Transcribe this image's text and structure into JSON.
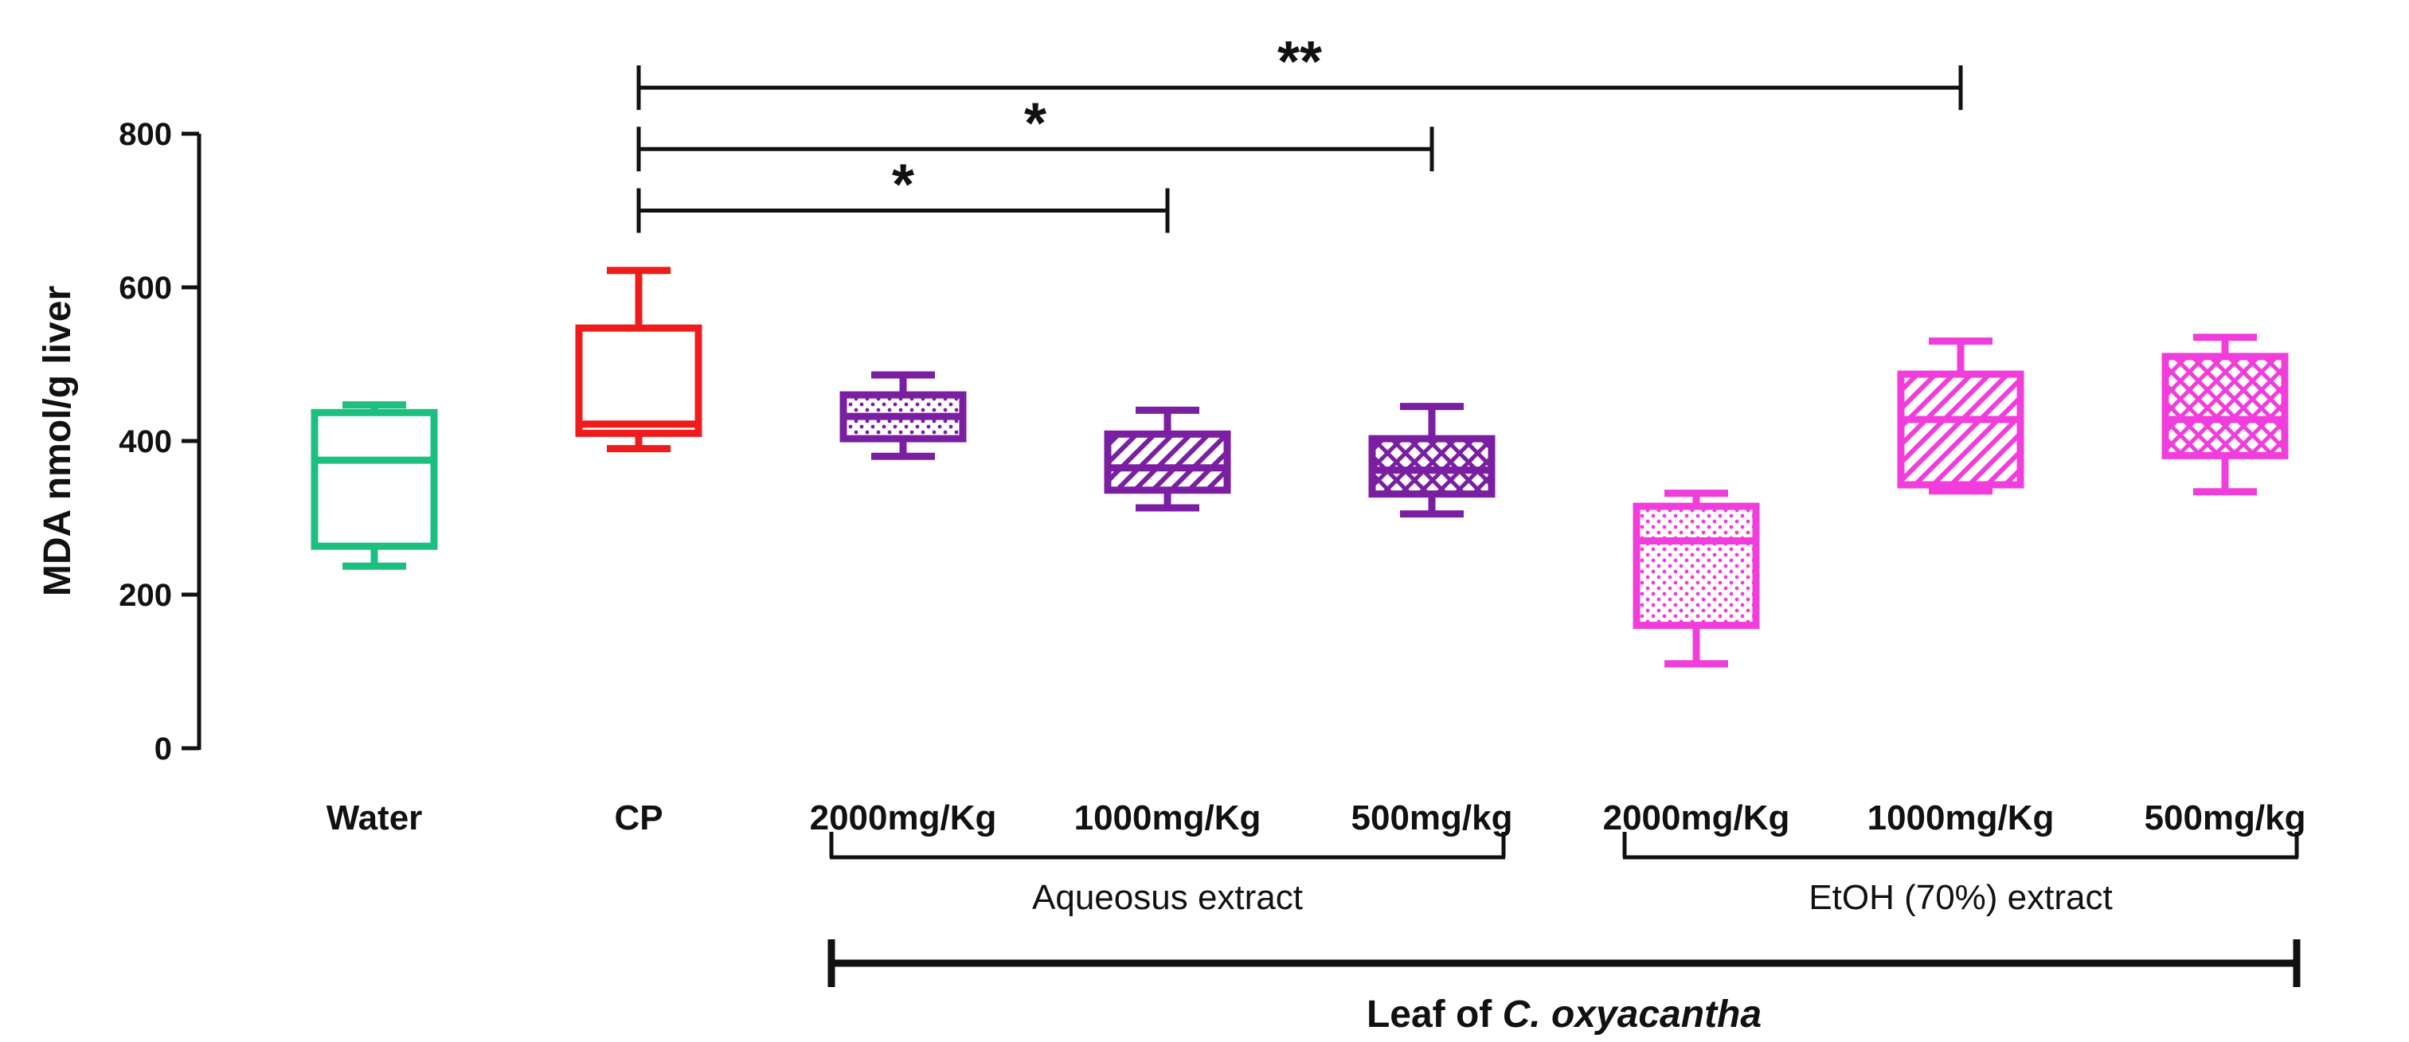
{
  "chart_data": {
    "type": "box",
    "ylabel": "MDA nmol/g liver",
    "ylim": [
      0,
      800
    ],
    "yticks": [
      "0",
      "200",
      "400",
      "600",
      "800"
    ],
    "grid": false,
    "categories": [
      "Water",
      "CP",
      "2000mg/Kg",
      "1000mg/Kg",
      "500mg/kg",
      "2000mg/Kg",
      "1000mg/Kg",
      "500mg/kg"
    ],
    "boxes": [
      {
        "category": "Water",
        "group": "",
        "min": 237,
        "q1": 263,
        "median": 375,
        "q3": 437,
        "max": 447,
        "color": "#1dbf7f",
        "pattern": "none"
      },
      {
        "category": "CP",
        "group": "",
        "min": 390,
        "q1": 410,
        "median": 422,
        "q3": 547,
        "max": 622,
        "color": "#ee1c1c",
        "pattern": "none"
      },
      {
        "category": "2000mg/Kg",
        "group": "Aqueosus extract",
        "min": 380,
        "q1": 403,
        "median": 432,
        "q3": 460,
        "max": 486,
        "color": "#7a1fa2",
        "pattern": "dots"
      },
      {
        "category": "1000mg/Kg",
        "group": "Aqueosus extract",
        "min": 313,
        "q1": 336,
        "median": 365,
        "q3": 409,
        "max": 440,
        "color": "#7a1fa2",
        "pattern": "diagonal"
      },
      {
        "category": "500mg/kg",
        "group": "Aqueosus extract",
        "min": 305,
        "q1": 331,
        "median": 362,
        "q3": 403,
        "max": 445,
        "color": "#7a1fa2",
        "pattern": "crosshatch"
      },
      {
        "category": "2000mg/Kg",
        "group": "EtOH (70%) extract",
        "min": 110,
        "q1": 160,
        "median": 270,
        "q3": 315,
        "max": 332,
        "color": "#f03ddb",
        "pattern": "dots"
      },
      {
        "category": "1000mg/Kg",
        "group": "EtOH (70%) extract",
        "min": 335,
        "q1": 343,
        "median": 428,
        "q3": 487,
        "max": 530,
        "color": "#f03ddb",
        "pattern": "diagonal"
      },
      {
        "category": "500mg/kg",
        "group": "EtOH (70%) extract",
        "min": 334,
        "q1": 381,
        "median": 428,
        "q3": 510,
        "max": 535,
        "color": "#f03ddb",
        "pattern": "crosshatch"
      }
    ],
    "groups": [
      {
        "label": "Aqueosus extract",
        "from": 2,
        "to": 4
      },
      {
        "label": "EtOH (70%) extract",
        "from": 5,
        "to": 7
      }
    ],
    "super_group": {
      "label_prefix": "Leaf of ",
      "label_italic": "C. oxyacantha",
      "from": 2,
      "to": 7
    },
    "significance": [
      {
        "from": 1,
        "to": 6,
        "label": "**",
        "level": 860
      },
      {
        "from": 1,
        "to": 4,
        "label": "*",
        "level": 780
      },
      {
        "from": 1,
        "to": 3,
        "label": "*",
        "level": 700
      }
    ]
  }
}
